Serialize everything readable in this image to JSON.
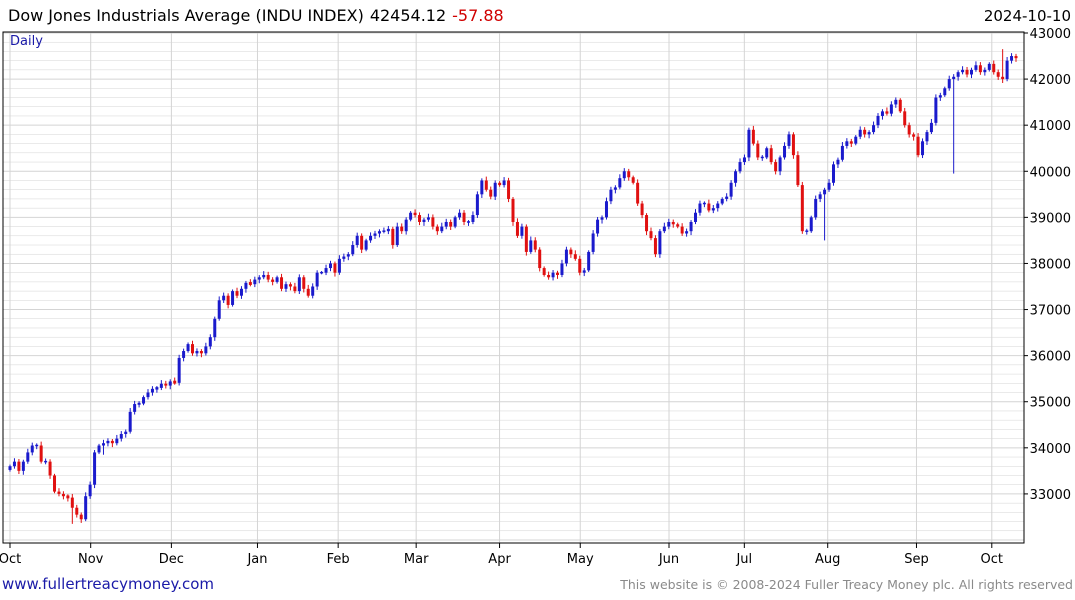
{
  "header": {
    "title": "Dow Jones Industrials Average (INDU INDEX)",
    "last_value": "42454.12",
    "change": "-57.88",
    "date": "2024-10-10",
    "frequency_label": "Daily"
  },
  "footer": {
    "link_text": "www.fullertreacymoney.com",
    "copyright": "This website is © 2008-2024 Fuller Treacy Money plc. All rights reserved"
  },
  "colors": {
    "up": "#1a1acc",
    "down": "#e01010",
    "grid": "#d4d4d4",
    "border": "#000000"
  },
  "chart_data": {
    "type": "candlestick",
    "title": "Dow Jones Industrials Average (INDU INDEX)",
    "ylim": [
      32000,
      43000
    ],
    "y_ticks": [
      33000,
      34000,
      35000,
      36000,
      37000,
      38000,
      39000,
      40000,
      41000,
      42000,
      43000
    ],
    "y_tick_labels": [
      "33000",
      "34000",
      "35000",
      "36000",
      "37000",
      "38000",
      "39000",
      "40000",
      "41000",
      "42000",
      "43000"
    ],
    "x_tick_labels": [
      "Oct",
      "Nov",
      "Dec",
      "Jan",
      "Feb",
      "Mar",
      "Apr",
      "May",
      "Jun",
      "Jul",
      "Aug",
      "Sep",
      "Oct"
    ],
    "x_tick_dates": [
      "2023-10-02",
      "2023-11-01",
      "2023-12-01",
      "2024-01-02",
      "2024-02-01",
      "2024-03-01",
      "2024-04-01",
      "2024-05-01",
      "2024-06-03",
      "2024-07-01",
      "2024-08-01",
      "2024-09-03",
      "2024-10-01"
    ],
    "start_date": "2023-10-02",
    "end_date": "2024-10-10",
    "grid": true,
    "closes": [
      33600,
      33700,
      33500,
      33700,
      33900,
      34050,
      34050,
      33700,
      33700,
      33400,
      33050,
      33000,
      32950,
      32920,
      32700,
      32550,
      32450,
      32950,
      33200,
      33900,
      34050,
      34100,
      34150,
      34100,
      34200,
      34300,
      34350,
      34780,
      34950,
      34960,
      35100,
      35200,
      35280,
      35300,
      35390,
      35350,
      35440,
      35410,
      35950,
      36100,
      36250,
      36050,
      36100,
      36050,
      36200,
      36400,
      36800,
      37200,
      37300,
      37100,
      37400,
      37300,
      37450,
      37580,
      37550,
      37650,
      37700,
      37750,
      37650,
      37600,
      37700,
      37450,
      37550,
      37500,
      37400,
      37700,
      37450,
      37300,
      37500,
      37800,
      37800,
      37900,
      38000,
      37800,
      38100,
      38150,
      38200,
      38400,
      38600,
      38300,
      38500,
      38600,
      38650,
      38700,
      38700,
      38750,
      38400,
      38800,
      38700,
      38950,
      39100,
      39050,
      38900,
      38950,
      39000,
      38800,
      38700,
      38800,
      38900,
      38800,
      39000,
      39100,
      38900,
      38900,
      39050,
      39500,
      39800,
      39600,
      39450,
      39750,
      39700,
      39800,
      39400,
      38900,
      38600,
      38800,
      38250,
      38500,
      38300,
      37900,
      37750,
      37700,
      37800,
      37750,
      38000,
      38300,
      38200,
      38100,
      37800,
      37850,
      38250,
      38650,
      38950,
      39000,
      39350,
      39600,
      39650,
      39850,
      40000,
      39870,
      39750,
      39300,
      39050,
      38700,
      38550,
      38200,
      38700,
      38800,
      38900,
      38850,
      38800,
      38650,
      38700,
      38900,
      39100,
      39300,
      39300,
      39150,
      39200,
      39300,
      39400,
      39450,
      39750,
      40000,
      40200,
      40300,
      40900,
      40600,
      40300,
      40300,
      40500,
      40200,
      40000,
      40300,
      40550,
      40800,
      40350,
      39700,
      38700,
      38700,
      39000,
      39400,
      39500,
      39600,
      39750,
      40150,
      40250,
      40550,
      40650,
      40600,
      40750,
      40900,
      40800,
      40850,
      41000,
      41200,
      41300,
      41250,
      41450,
      41550,
      41300,
      41000,
      40800,
      40750,
      40350,
      40650,
      40850,
      41050,
      41600,
      41650,
      41800,
      42000,
      42050,
      42150,
      42200,
      42100,
      42200,
      42300,
      42150,
      42200,
      42330,
      42150,
      42050,
      42000,
      42400,
      42500,
      42454
    ],
    "wick_pad": 90,
    "extra_wicks": [
      {
        "index": 183,
        "low": 38500
      },
      {
        "index": 212,
        "low": 39950
      },
      {
        "index": 223,
        "high": 42650
      },
      {
        "index": 21,
        "low": 33850
      },
      {
        "index": 14,
        "low": 32350
      }
    ]
  }
}
